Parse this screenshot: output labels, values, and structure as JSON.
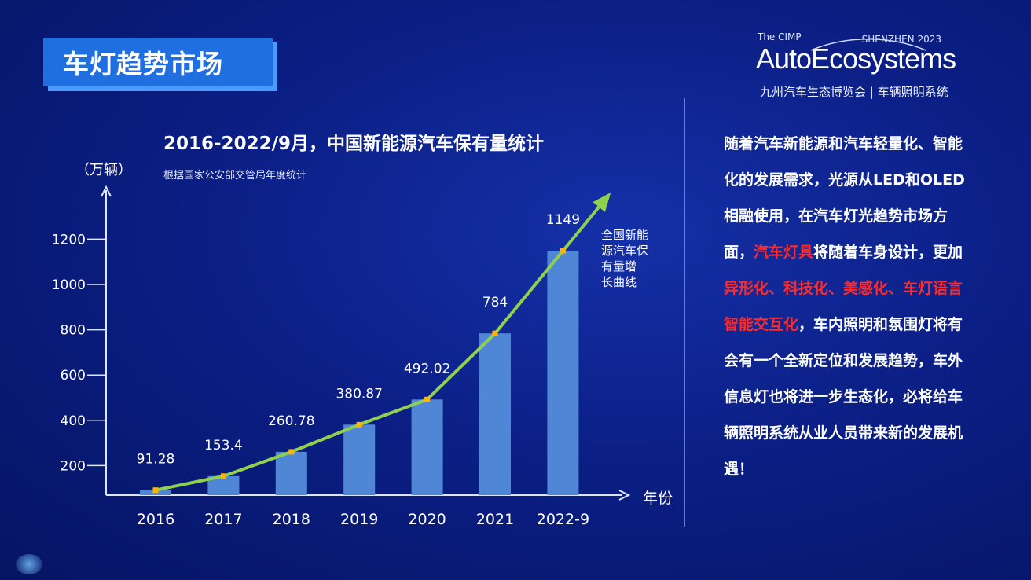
{
  "header": {
    "title": "车灯趋势市场"
  },
  "logo": {
    "prefix": "The CIMP",
    "city": "SHENZHEN 2023",
    "brand": "AutoEcosystems",
    "tagline": "九州汽车生态博览会 | 车辆照明系统"
  },
  "chart_data": {
    "type": "bar",
    "title": "2016-2022/9月，中国新能源汽车保有量统计",
    "subtitle": "根据国家公安部交管局年度统计",
    "ylabel": "（万辆）",
    "xlabel": "年份",
    "categories": [
      "2016",
      "2017",
      "2018",
      "2019",
      "2020",
      "2021",
      "2022-9"
    ],
    "values": [
      91.28,
      153.4,
      260.78,
      380.87,
      492.02,
      784,
      1149
    ],
    "labels": [
      "91.28",
      "153.4",
      "260.78",
      "380.87",
      "492.02",
      "784",
      "1149"
    ],
    "yticks": [
      200,
      400,
      600,
      800,
      1000,
      1200
    ],
    "ylim": [
      0,
      1400
    ],
    "trend_label": [
      "全国新能",
      "源汽车保",
      "有量增",
      "长曲线"
    ],
    "colors": {
      "bar": "#4f87d6",
      "trend": "#8fd14f",
      "marker": "#ffb400"
    }
  },
  "body_text": {
    "p1": "随着汽车新能源和汽车轻量化、智能化的发展需求，光源从LED和OLED相融使用，在汽车灯光趋势市场方面，",
    "r1": "汽车灯具",
    "p2": "将随着车身设计，更加",
    "r2": "异形化、科技化、美感化、车灯语言智能交互化",
    "p3": "，车内照明和氛围灯将有会有一个全新定位和发展趋势，车外信息灯也将进一步生态化，必将给车辆照明系统从业人员带来新的发展机遇！"
  }
}
